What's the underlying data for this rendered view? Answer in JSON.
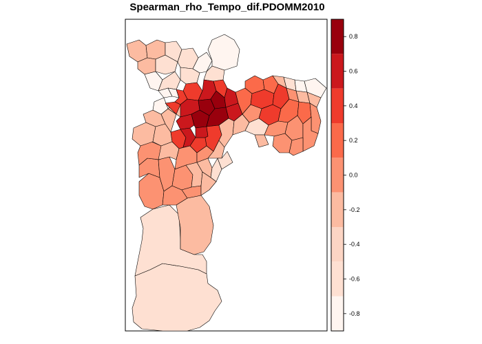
{
  "title": "Spearman_rho_Tempo_dif.PDOMM2010",
  "legend": {
    "ticks": [
      "0.8",
      "0.6",
      "0.4",
      "0.2",
      "0.0",
      "-0.2",
      "-0.4",
      "-0.6",
      "-0.8"
    ],
    "tick_values": [
      0.8,
      0.6,
      0.4,
      0.2,
      0.0,
      -0.2,
      -0.4,
      -0.6,
      -0.8
    ],
    "range": [
      -0.9,
      0.9
    ],
    "classes": [
      {
        "min": 0.7,
        "max": 0.9,
        "color": "#99000D"
      },
      {
        "min": 0.5,
        "max": 0.7,
        "color": "#CB181D"
      },
      {
        "min": 0.3,
        "max": 0.5,
        "color": "#EF3B2C"
      },
      {
        "min": 0.1,
        "max": 0.3,
        "color": "#FB6A4A"
      },
      {
        "min": -0.1,
        "max": 0.1,
        "color": "#FC9272"
      },
      {
        "min": -0.3,
        "max": -0.1,
        "color": "#FCBBA1"
      },
      {
        "min": -0.5,
        "max": -0.3,
        "color": "#FCD5C4"
      },
      {
        "min": -0.7,
        "max": -0.5,
        "color": "#FEE0D2"
      },
      {
        "min": -0.9,
        "max": -0.7,
        "color": "#FFF5F0"
      }
    ]
  }
}
